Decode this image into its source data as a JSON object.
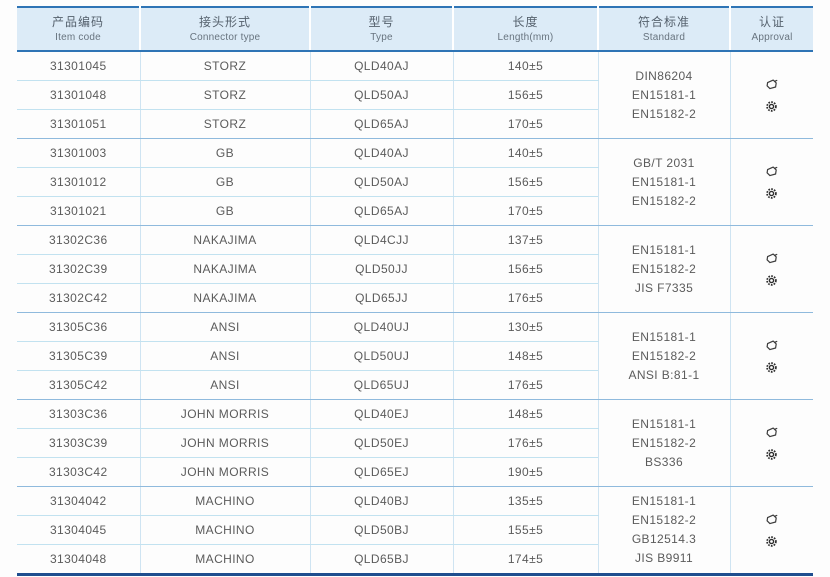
{
  "colors": {
    "header_bg": "#dcebf7",
    "border_blue": "#2e74b5",
    "bottom_border": "#1f4e8f",
    "row_line": "#c2e2f0",
    "group_line": "#8fbadd",
    "text": "#5b5b5b"
  },
  "table": {
    "headers": [
      {
        "zh": "产品编码",
        "en": "Item code"
      },
      {
        "zh": "接头形式",
        "en": "Connector type"
      },
      {
        "zh": "型号",
        "en": "Type"
      },
      {
        "zh": "长度",
        "en": "Length(mm)"
      },
      {
        "zh": "符合标准",
        "en": "Standard"
      },
      {
        "zh": "认证",
        "en": "Approval"
      }
    ],
    "approval_icons": [
      "certificate-stamp-icon",
      "gear-seal-icon"
    ],
    "groups": [
      {
        "rows": [
          {
            "item_code": "31301045",
            "connector_type": "STORZ",
            "type": "QLD40AJ",
            "length": "140±5"
          },
          {
            "item_code": "31301048",
            "connector_type": "STORZ",
            "type": "QLD50AJ",
            "length": "156±5"
          },
          {
            "item_code": "31301051",
            "connector_type": "STORZ",
            "type": "QLD65AJ",
            "length": "170±5"
          }
        ],
        "standards": [
          "DIN86204",
          "EN15181-1",
          "EN15182-2"
        ]
      },
      {
        "rows": [
          {
            "item_code": "31301003",
            "connector_type": "GB",
            "type": "QLD40AJ",
            "length": "140±5"
          },
          {
            "item_code": "31301012",
            "connector_type": "GB",
            "type": "QLD50AJ",
            "length": "156±5"
          },
          {
            "item_code": "31301021",
            "connector_type": "GB",
            "type": "QLD65AJ",
            "length": "170±5"
          }
        ],
        "standards": [
          "GB/T 2031",
          "EN15181-1",
          "EN15182-2"
        ]
      },
      {
        "rows": [
          {
            "item_code": "31302C36",
            "connector_type": "NAKAJIMA",
            "type": "QLD4CJJ",
            "length": "137±5"
          },
          {
            "item_code": "31302C39",
            "connector_type": "NAKAJIMA",
            "type": "QLD50JJ",
            "length": "156±5"
          },
          {
            "item_code": "31302C42",
            "connector_type": "NAKAJIMA",
            "type": "QLD65JJ",
            "length": "176±5"
          }
        ],
        "standards": [
          "EN15181-1",
          "EN15182-2",
          "JIS F7335"
        ]
      },
      {
        "rows": [
          {
            "item_code": "31305C36",
            "connector_type": "ANSI",
            "type": "QLD40UJ",
            "length": "130±5"
          },
          {
            "item_code": "31305C39",
            "connector_type": "ANSI",
            "type": "QLD50UJ",
            "length": "148±5"
          },
          {
            "item_code": "31305C42",
            "connector_type": "ANSI",
            "type": "QLD65UJ",
            "length": "176±5"
          }
        ],
        "standards": [
          "EN15181-1",
          "EN15182-2",
          "ANSI B:81-1"
        ]
      },
      {
        "rows": [
          {
            "item_code": "31303C36",
            "connector_type": "JOHN MORRIS",
            "type": "QLD40EJ",
            "length": "148±5"
          },
          {
            "item_code": "31303C39",
            "connector_type": "JOHN MORRIS",
            "type": "QLD50EJ",
            "length": "176±5"
          },
          {
            "item_code": "31303C42",
            "connector_type": "JOHN MORRIS",
            "type": "QLD65EJ",
            "length": "190±5"
          }
        ],
        "standards": [
          "EN15181-1",
          "EN15182-2",
          "BS336"
        ]
      },
      {
        "rows": [
          {
            "item_code": "31304042",
            "connector_type": "MACHINO",
            "type": "QLD40BJ",
            "length": "135±5"
          },
          {
            "item_code": "31304045",
            "connector_type": "MACHINO",
            "type": "QLD50BJ",
            "length": "155±5"
          },
          {
            "item_code": "31304048",
            "connector_type": "MACHINO",
            "type": "QLD65BJ",
            "length": "174±5"
          }
        ],
        "standards": [
          "EN15181-1",
          "EN15182-2",
          "GB12514.3",
          "JIS B9911"
        ]
      }
    ]
  }
}
